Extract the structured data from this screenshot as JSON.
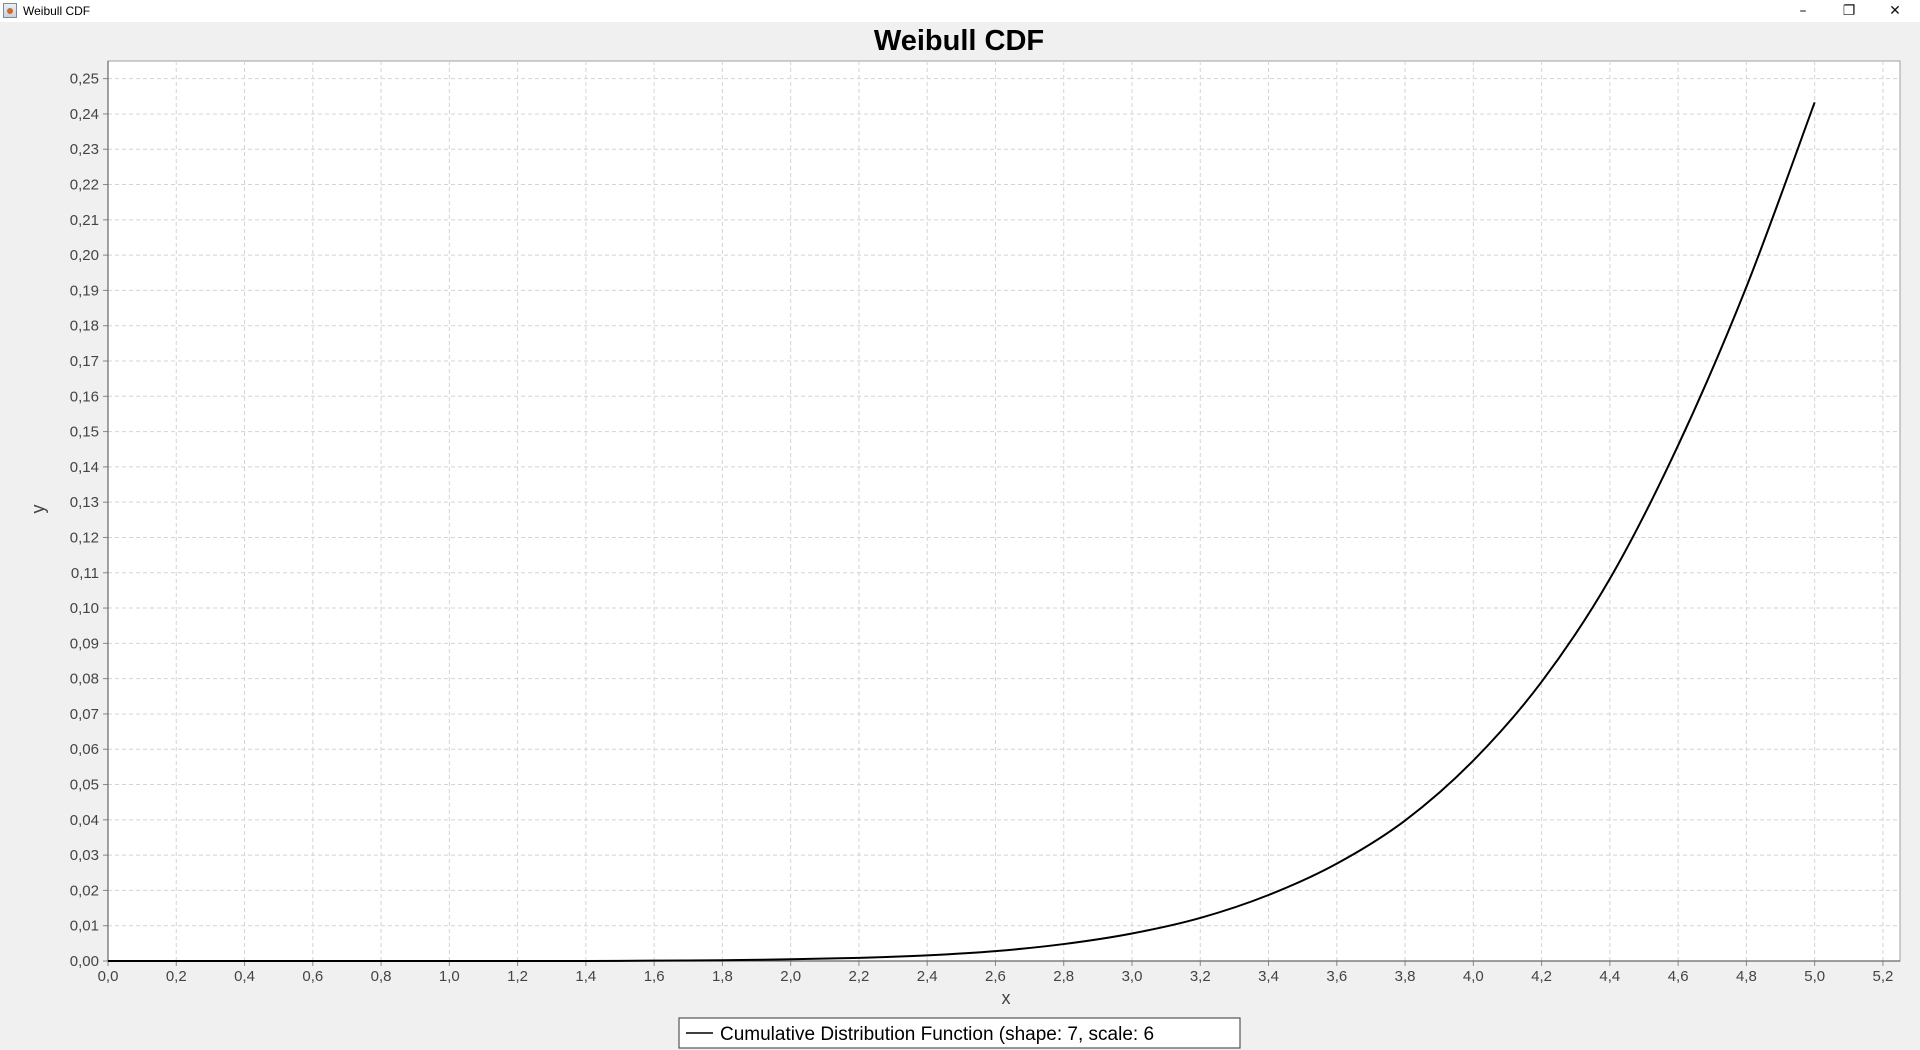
{
  "window": {
    "title": "Weibull CDF",
    "minimize_glyph": "–",
    "restore_glyph": "❐",
    "close_glyph": "✕",
    "icon": "java-app-icon"
  },
  "chart_data": {
    "type": "line",
    "title": "Weibull CDF",
    "xlabel": "x",
    "ylabel": "y",
    "xlim": [
      0.0,
      5.25
    ],
    "ylim": [
      0.0,
      0.255
    ],
    "x_ticks": [
      "0,0",
      "0,2",
      "0,4",
      "0,6",
      "0,8",
      "1,0",
      "1,2",
      "1,4",
      "1,6",
      "1,8",
      "2,0",
      "2,2",
      "2,4",
      "2,6",
      "2,8",
      "3,0",
      "3,2",
      "3,4",
      "3,6",
      "3,8",
      "4,0",
      "4,2",
      "4,4",
      "4,6",
      "4,8",
      "5,0",
      "5,2"
    ],
    "y_ticks": [
      "0,00",
      "0,01",
      "0,02",
      "0,03",
      "0,04",
      "0,05",
      "0,06",
      "0,07",
      "0,08",
      "0,09",
      "0,10",
      "0,11",
      "0,12",
      "0,13",
      "0,14",
      "0,15",
      "0,16",
      "0,17",
      "0,18",
      "0,19",
      "0,20",
      "0,21",
      "0,22",
      "0,23",
      "0,24",
      "0,25"
    ],
    "grid": true,
    "legend_position": "bottom-center",
    "series": [
      {
        "name": "Cumulative Distribution Function (shape: 7, scale: 6",
        "color": "#000000",
        "x": [
          0.0,
          0.2,
          0.4,
          0.6,
          0.8,
          1.0,
          1.2,
          1.4,
          1.6,
          1.8,
          2.0,
          2.2,
          2.4,
          2.6,
          2.8,
          3.0,
          3.2,
          3.4,
          3.6,
          3.8,
          4.0,
          4.2,
          4.4,
          4.6,
          4.8,
          5.0
        ],
        "y": [
          0.0,
          0.0,
          0.0,
          0.0,
          0.0,
          0.0,
          0.0,
          0.0,
          0.0001,
          0.0002,
          0.0005,
          0.0009,
          0.0016,
          0.0028,
          0.0048,
          0.0078,
          0.0122,
          0.0187,
          0.0276,
          0.0398,
          0.0568,
          0.0791,
          0.1083,
          0.1461,
          0.191,
          0.2433
        ]
      }
    ]
  }
}
